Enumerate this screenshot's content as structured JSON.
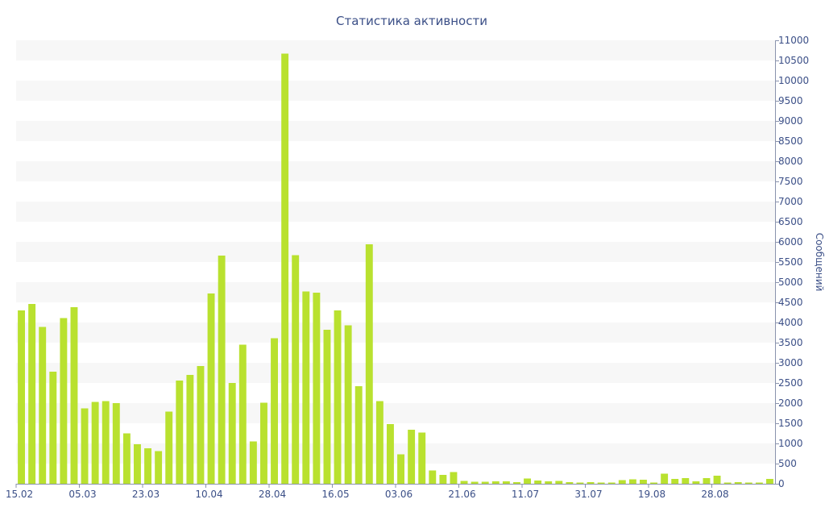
{
  "chart_data": {
    "type": "bar",
    "title": "Статистика активности",
    "ylabel": "Сообщений",
    "xlabel": "",
    "ylim": [
      0,
      11000
    ],
    "ytick_step": 500,
    "grid": "alternating-bands",
    "bar_color": "#b9e12f",
    "x_tick_labels": [
      {
        "label": "15.02",
        "bar_index": 0
      },
      {
        "label": "05.03",
        "bar_index": 6
      },
      {
        "label": "23.03",
        "bar_index": 12
      },
      {
        "label": "10.04",
        "bar_index": 18
      },
      {
        "label": "28.04",
        "bar_index": 24
      },
      {
        "label": "16.05",
        "bar_index": 30
      },
      {
        "label": "03.06",
        "bar_index": 36
      },
      {
        "label": "21.06",
        "bar_index": 42
      },
      {
        "label": "11.07",
        "bar_index": 48
      },
      {
        "label": "31.07",
        "bar_index": 54
      },
      {
        "label": "19.08",
        "bar_index": 60
      },
      {
        "label": "28.08",
        "bar_index": 66
      }
    ],
    "values": [
      4300,
      4460,
      3890,
      2780,
      4110,
      4380,
      1870,
      2030,
      2050,
      2000,
      1250,
      980,
      880,
      810,
      1790,
      2560,
      2700,
      2920,
      4720,
      5660,
      2500,
      3450,
      1050,
      2010,
      3610,
      10670,
      5670,
      4770,
      4740,
      3820,
      4300,
      3930,
      2420,
      5940,
      2050,
      1480,
      730,
      1340,
      1270,
      330,
      220,
      290,
      70,
      50,
      50,
      60,
      60,
      40,
      130,
      80,
      60,
      70,
      40,
      30,
      40,
      30,
      30,
      90,
      110,
      100,
      30,
      250,
      120,
      140,
      60,
      140,
      200,
      30,
      40,
      30,
      30,
      120
    ]
  }
}
